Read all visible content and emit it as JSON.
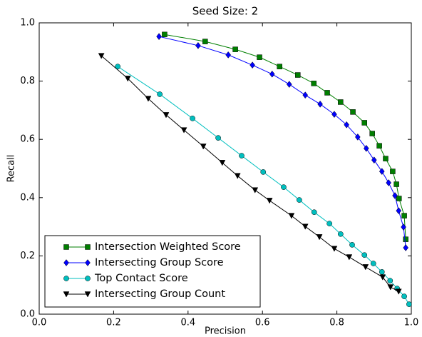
{
  "chart_data": {
    "type": "line",
    "title": "Seed Size: 2",
    "x_label": "Precision",
    "y_label": "Recall",
    "xlim": [
      0,
      1
    ],
    "ylim": [
      0,
      1
    ],
    "xticks": [
      {
        "value": 0,
        "label": "0.0"
      },
      0.2,
      0.4,
      0.6,
      0.8,
      {
        "value": 1,
        "label": "1.0"
      }
    ],
    "yticks": [
      {
        "value": 0,
        "label": "0.0"
      },
      0.2,
      0.4,
      0.6,
      0.8,
      {
        "value": 1,
        "label": "1.0"
      }
    ],
    "grid": false,
    "legend": "lower left",
    "series": [
      {
        "name": "Intersection Weighted Score",
        "color": "#007f00",
        "marker": "square",
        "x": [
          0.337,
          0.446,
          0.527,
          0.592,
          0.646,
          0.695,
          0.738,
          0.774,
          0.81,
          0.843,
          0.874,
          0.895,
          0.914,
          0.931,
          0.95,
          0.96,
          0.967,
          0.981,
          0.985
        ],
        "values": [
          0.96,
          0.936,
          0.909,
          0.882,
          0.85,
          0.821,
          0.792,
          0.76,
          0.728,
          0.694,
          0.657,
          0.62,
          0.578,
          0.534,
          0.49,
          0.446,
          0.397,
          0.338,
          0.257
        ]
      },
      {
        "name": "Intersecting Group Score",
        "color": "#0000ff",
        "marker": "diamond",
        "x": [
          0.322,
          0.427,
          0.508,
          0.573,
          0.626,
          0.672,
          0.715,
          0.755,
          0.793,
          0.826,
          0.856,
          0.879,
          0.9,
          0.921,
          0.939,
          0.956,
          0.966,
          0.979,
          0.985
        ],
        "values": [
          0.953,
          0.922,
          0.89,
          0.855,
          0.824,
          0.789,
          0.752,
          0.721,
          0.686,
          0.65,
          0.608,
          0.569,
          0.529,
          0.49,
          0.451,
          0.407,
          0.355,
          0.299,
          0.228
        ]
      },
      {
        "name": "Top Contact Score",
        "color": "#00bfbf",
        "marker": "circle",
        "x": [
          0.211,
          0.324,
          0.412,
          0.481,
          0.544,
          0.602,
          0.657,
          0.699,
          0.739,
          0.78,
          0.81,
          0.841,
          0.874,
          0.898,
          0.921,
          0.943,
          0.962,
          0.981,
          0.994
        ],
        "values": [
          0.85,
          0.755,
          0.672,
          0.605,
          0.544,
          0.488,
          0.436,
          0.392,
          0.35,
          0.311,
          0.275,
          0.238,
          0.203,
          0.174,
          0.145,
          0.115,
          0.088,
          0.061,
          0.034
        ]
      },
      {
        "name": "Intersecting Group Count",
        "color": "#000000",
        "marker": "triangle-down",
        "x": [
          0.167,
          0.238,
          0.293,
          0.341,
          0.389,
          0.441,
          0.492,
          0.533,
          0.58,
          0.619,
          0.678,
          0.715,
          0.753,
          0.793,
          0.833,
          0.877,
          0.923,
          0.944,
          0.966
        ],
        "values": [
          0.887,
          0.809,
          0.74,
          0.684,
          0.632,
          0.576,
          0.52,
          0.475,
          0.426,
          0.39,
          0.338,
          0.301,
          0.265,
          0.225,
          0.196,
          0.162,
          0.127,
          0.093,
          0.078
        ]
      }
    ]
  }
}
